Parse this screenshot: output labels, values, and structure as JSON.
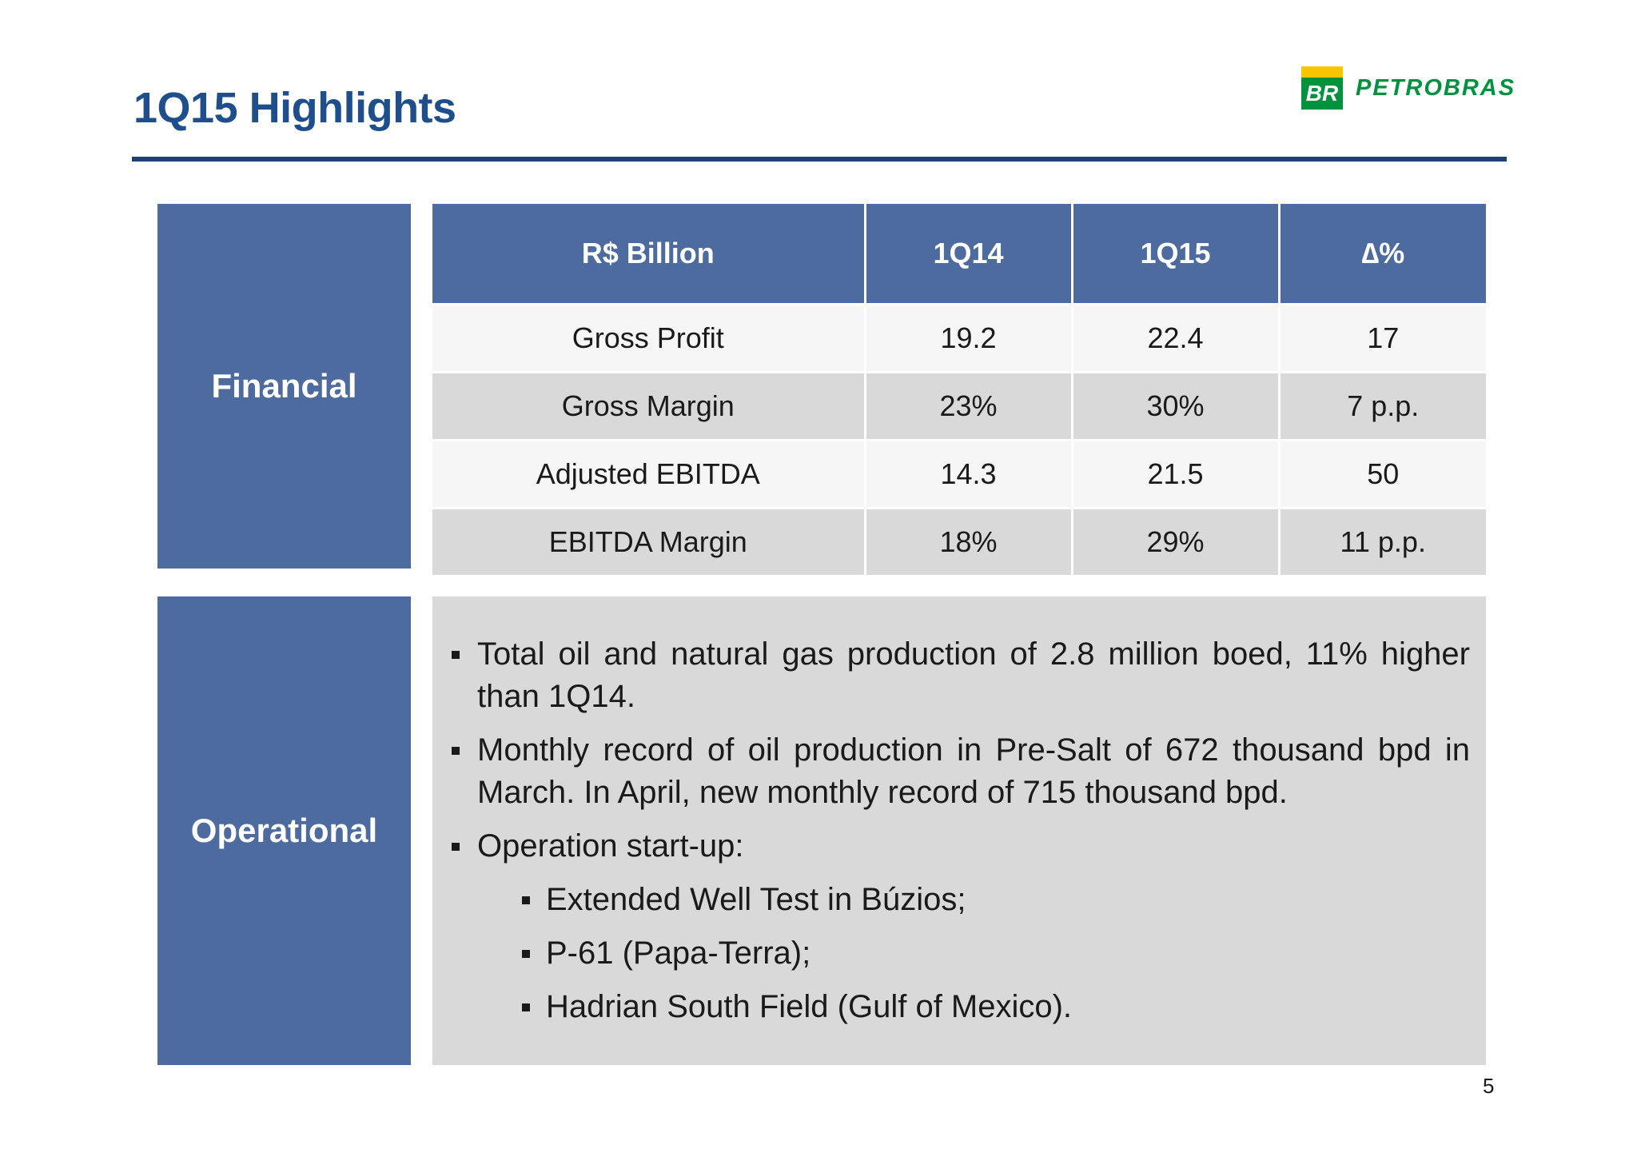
{
  "slide": {
    "title": "1Q15 Highlights",
    "page_number": "5"
  },
  "logo": {
    "mark_text": "BR",
    "wordmark": "PETROBRAS",
    "colors": {
      "green": "#00923f",
      "yellow": "#f7c600"
    }
  },
  "financial": {
    "label": "Financial",
    "headers": [
      "R$ Billion",
      "1Q14",
      "1Q15",
      "∆%"
    ],
    "rows": [
      [
        "Gross Profit",
        "19.2",
        "22.4",
        "17"
      ],
      [
        "Gross Margin",
        "23%",
        "30%",
        "7 p.p."
      ],
      [
        "Adjusted EBITDA",
        "14.3",
        "21.5",
        "50"
      ],
      [
        "EBITDA Margin",
        "18%",
        "29%",
        "11 p.p."
      ]
    ]
  },
  "operational": {
    "label": "Operational",
    "bullets": [
      "Total oil and natural gas production of 2.8 million boed, 11% higher than 1Q14.",
      "Monthly record of oil production in Pre-Salt of 672 thousand bpd in March. In April, new monthly record of 715 thousand bpd.",
      "Operation start-up:"
    ],
    "sub_bullets": [
      "Extended Well Test in Búzios;",
      "P-61 (Papa-Terra);",
      "Hadrian South Field (Gulf of Mexico)."
    ]
  },
  "colors": {
    "title": "#1f4e8c",
    "panel_blue": "#4d6b9e",
    "row_gray": "#d9d9d9"
  }
}
